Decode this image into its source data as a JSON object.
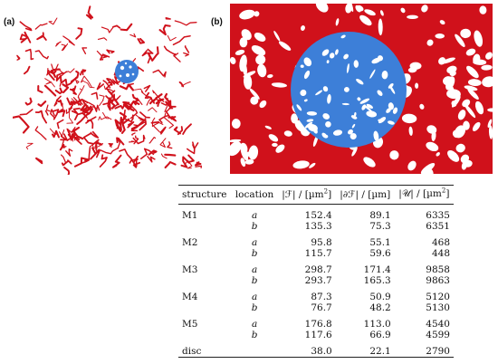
{
  "figure": {
    "panel_a_label": "(a)",
    "panel_b_label": "(b)",
    "colors": {
      "network": "#d0111b",
      "disc": "#3d7fd8",
      "background": "#ffffff"
    }
  },
  "table": {
    "headers": [
      "structure",
      "location",
      "|ℱ| / [µm",
      "|∂ℱ| / [µm]",
      "|𝒰| / [µm"
    ],
    "header_units_sup": [
      "",
      "",
      "2",
      "",
      "2"
    ],
    "header_closers": [
      "",
      "",
      "]",
      "",
      "]"
    ],
    "rows": [
      {
        "structure": "M1",
        "location": "a",
        "F": "152.4",
        "dF": "89.1",
        "U": "6335"
      },
      {
        "structure": "",
        "location": "b",
        "F": "135.3",
        "dF": "75.3",
        "U": "6351"
      },
      {
        "structure": "M2",
        "location": "a",
        "F": "95.8",
        "dF": "55.1",
        "U": "468"
      },
      {
        "structure": "",
        "location": "b",
        "F": "115.7",
        "dF": "59.6",
        "U": "448"
      },
      {
        "structure": "M3",
        "location": "a",
        "F": "298.7",
        "dF": "171.4",
        "U": "9858"
      },
      {
        "structure": "",
        "location": "b",
        "F": "293.7",
        "dF": "165.3",
        "U": "9863"
      },
      {
        "structure": "M4",
        "location": "a",
        "F": "87.3",
        "dF": "50.9",
        "U": "5120"
      },
      {
        "structure": "",
        "location": "b",
        "F": "76.7",
        "dF": "48.2",
        "U": "5130"
      },
      {
        "structure": "M5",
        "location": "a",
        "F": "176.8",
        "dF": "113.0",
        "U": "4540"
      },
      {
        "structure": "",
        "location": "b",
        "F": "117.6",
        "dF": "66.9",
        "U": "4599"
      },
      {
        "structure": "disc",
        "location": "",
        "F": "38.0",
        "dF": "22.1",
        "U": "2790"
      }
    ]
  }
}
